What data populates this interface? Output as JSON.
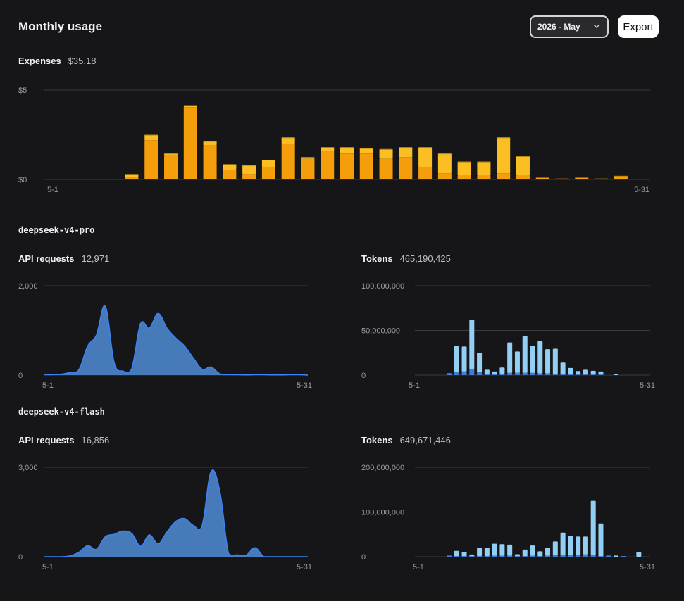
{
  "header": {
    "title": "Monthly usage",
    "month_select": "2026 - May",
    "export_label": "Export"
  },
  "expenses": {
    "label": "Expenses",
    "value": "$35.18"
  },
  "models": [
    {
      "name": "deepseek-v4-pro",
      "requests": {
        "label": "API requests",
        "value": "12,971"
      },
      "tokens": {
        "label": "Tokens",
        "value": "465,190,425"
      }
    },
    {
      "name": "deepseek-v4-flash",
      "requests": {
        "label": "API requests",
        "value": "16,856"
      },
      "tokens": {
        "label": "Tokens",
        "value": "649,671,446"
      }
    }
  ],
  "colors": {
    "expense_dark": "#f59e0b",
    "expense_light": "#fbbf24",
    "area_fill": "#4a7fc1",
    "area_line": "#3b82f6",
    "token_light": "#93cff5",
    "token_dark": "#3d7fd6",
    "grid": "#3a3a3e"
  },
  "chart_data": [
    {
      "type": "bar",
      "id": "expenses",
      "stacked": true,
      "x_start_label": "5-1",
      "x_end_label": "5-31",
      "y_tick_labels": [
        "$0",
        "$5"
      ],
      "ylim": [
        0,
        5
      ],
      "categories": [
        "5-1",
        "5-2",
        "5-3",
        "5-4",
        "5-5",
        "5-6",
        "5-7",
        "5-8",
        "5-9",
        "5-10",
        "5-11",
        "5-12",
        "5-13",
        "5-14",
        "5-15",
        "5-16",
        "5-17",
        "5-18",
        "5-19",
        "5-20",
        "5-21",
        "5-22",
        "5-23",
        "5-24",
        "5-25",
        "5-26",
        "5-27",
        "5-28",
        "5-29",
        "5-30",
        "5-31"
      ],
      "series": [
        {
          "values": [
            0,
            0,
            0,
            0,
            0.15,
            2.2,
            1.35,
            4.05,
            1.9,
            0.55,
            0.3,
            0.7,
            2.0,
            1.15,
            1.6,
            1.45,
            1.45,
            1.15,
            1.25,
            0.7,
            0.35,
            0.2,
            0.2,
            0.35,
            0.2,
            0.1,
            0.05,
            0.1,
            0.05,
            0.2,
            0
          ]
        },
        {
          "values": [
            0,
            0,
            0,
            0,
            0.15,
            0.3,
            0.1,
            0.1,
            0.25,
            0.3,
            0.5,
            0.4,
            0.35,
            0.1,
            0.2,
            0.35,
            0.3,
            0.55,
            0.55,
            1.1,
            1.1,
            0.8,
            0.8,
            2.0,
            1.1,
            0,
            0,
            0,
            0,
            0,
            0
          ]
        }
      ]
    },
    {
      "type": "area",
      "id": "pro-requests",
      "x_start_label": "5-1",
      "x_end_label": "5-31",
      "y_tick_labels": [
        "0",
        "2,000"
      ],
      "ylim": [
        0,
        2000
      ],
      "x": [
        1,
        2,
        3,
        4,
        5,
        6,
        7,
        8,
        9,
        10,
        11,
        12,
        13,
        14,
        15,
        16,
        17,
        18,
        19,
        20,
        21,
        22,
        23,
        24,
        25,
        26,
        27,
        28,
        29,
        30,
        31
      ],
      "values": [
        10,
        10,
        20,
        60,
        120,
        650,
        900,
        1540,
        280,
        90,
        140,
        1150,
        1050,
        1380,
        1050,
        830,
        650,
        380,
        130,
        180,
        30,
        10,
        10,
        5,
        10,
        10,
        5,
        5,
        10,
        10,
        0
      ]
    },
    {
      "type": "bar",
      "id": "pro-tokens",
      "stacked": true,
      "x_start_label": "5-1",
      "x_end_label": "5-31",
      "y_tick_labels": [
        "0",
        "50,000,000",
        "100,000,000"
      ],
      "ylim": [
        0,
        100000000
      ],
      "categories": [
        "5-1",
        "5-2",
        "5-3",
        "5-4",
        "5-5",
        "5-6",
        "5-7",
        "5-8",
        "5-9",
        "5-10",
        "5-11",
        "5-12",
        "5-13",
        "5-14",
        "5-15",
        "5-16",
        "5-17",
        "5-18",
        "5-19",
        "5-20",
        "5-21",
        "5-22",
        "5-23",
        "5-24",
        "5-25",
        "5-26",
        "5-27",
        "5-28",
        "5-29",
        "5-30",
        "5-31"
      ],
      "series": [
        {
          "values": [
            0,
            0,
            0,
            0,
            1000000,
            3000000,
            4000000,
            7000000,
            3000000,
            1000000,
            1000000,
            1500000,
            2500000,
            2500000,
            2500000,
            2500000,
            2000000,
            2000000,
            1500000,
            1000000,
            500000,
            500000,
            500000,
            300000,
            200000,
            0,
            0,
            0,
            0,
            0,
            0
          ]
        },
        {
          "values": [
            0,
            0,
            0,
            0,
            1000000,
            30000000,
            28000000,
            55000000,
            22000000,
            5000000,
            3000000,
            7000000,
            34000000,
            24000000,
            41000000,
            30000000,
            36000000,
            27000000,
            28000000,
            13000000,
            7500000,
            4000000,
            5500000,
            4500000,
            3800000,
            0,
            800000,
            0,
            0,
            0,
            0
          ]
        }
      ]
    },
    {
      "type": "area",
      "id": "flash-requests",
      "x_start_label": "5-1",
      "x_end_label": "5-31",
      "y_tick_labels": [
        "0",
        "3,000"
      ],
      "ylim": [
        0,
        3000
      ],
      "x": [
        1,
        2,
        3,
        4,
        5,
        6,
        7,
        8,
        9,
        10,
        11,
        12,
        13,
        14,
        15,
        16,
        17,
        18,
        19,
        20,
        21,
        22,
        23,
        24,
        25,
        26,
        27,
        28,
        29,
        30,
        31
      ],
      "values": [
        0,
        0,
        0,
        30,
        150,
        370,
        250,
        670,
        750,
        860,
        780,
        350,
        730,
        430,
        830,
        1180,
        1280,
        1050,
        1050,
        2850,
        2200,
        100,
        60,
        50,
        300,
        0,
        0,
        0,
        0,
        0,
        0
      ]
    },
    {
      "type": "bar",
      "id": "flash-tokens",
      "stacked": true,
      "x_start_label": "5-1",
      "x_end_label": "5-31",
      "y_tick_labels": [
        "0",
        "100,000,000",
        "200,000,000"
      ],
      "ylim": [
        0,
        200000000
      ],
      "categories": [
        "5-1",
        "5-2",
        "5-3",
        "5-4",
        "5-5",
        "5-6",
        "5-7",
        "5-8",
        "5-9",
        "5-10",
        "5-11",
        "5-12",
        "5-13",
        "5-14",
        "5-15",
        "5-16",
        "5-17",
        "5-18",
        "5-19",
        "5-20",
        "5-21",
        "5-22",
        "5-23",
        "5-24",
        "5-25",
        "5-26",
        "5-27",
        "5-28",
        "5-29",
        "5-30",
        "5-31"
      ],
      "series": [
        {
          "values": [
            0,
            0,
            0,
            0,
            500000,
            1000000,
            1000000,
            500000,
            1500000,
            1500000,
            2000000,
            2000000,
            2000000,
            500000,
            1000000,
            2000000,
            1000000,
            2000000,
            3000000,
            4000000,
            4000000,
            3000000,
            5000000,
            3000000,
            500000,
            500000,
            0,
            500000,
            0,
            0,
            0
          ]
        },
        {
          "values": [
            0,
            0,
            0,
            0,
            500000,
            12000000,
            10000000,
            4500000,
            18000000,
            18000000,
            27000000,
            26000000,
            25000000,
            5000000,
            15000000,
            23000000,
            11000000,
            18000000,
            31000000,
            50000000,
            42000000,
            42000000,
            40000000,
            122000000,
            74000000,
            1500000,
            2500000,
            0,
            0,
            10000000,
            0
          ]
        }
      ]
    }
  ]
}
